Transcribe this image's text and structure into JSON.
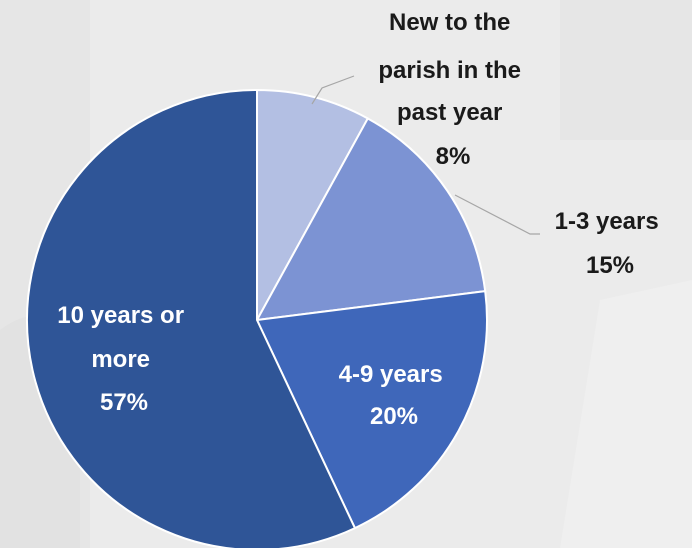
{
  "chart_data": {
    "type": "pie",
    "title": "",
    "start_angle_deg": 0,
    "direction": "clockwise",
    "slices": [
      {
        "label_lines": [
          "New to the",
          "parish in the",
          "past year"
        ],
        "value": 8,
        "value_label": "8%",
        "color": "#b3bfe3"
      },
      {
        "label_lines": [
          "1-3 years"
        ],
        "value": 15,
        "value_label": "15%",
        "color": "#7c93d3"
      },
      {
        "label_lines": [
          "4-9 years"
        ],
        "value": 20,
        "value_label": "20%",
        "color": "#3f67ba"
      },
      {
        "label_lines": [
          "10 years or",
          "more"
        ],
        "value": 57,
        "value_label": "57%",
        "color": "#2f5597"
      }
    ],
    "label_colors": {
      "outside": "#1a1a1a",
      "inside": "#ffffff"
    },
    "leader_line_color": "#a6a6a6"
  }
}
